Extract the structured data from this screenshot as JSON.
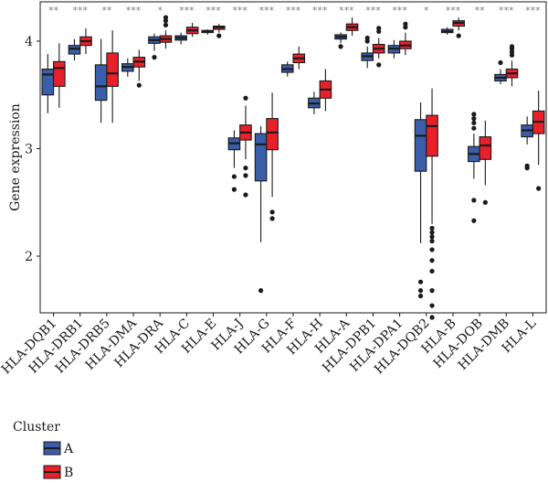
{
  "chart_data": {
    "type": "box",
    "ylabel": "Gene expression",
    "ylim": [
      1.35,
      4.35
    ],
    "yticks": [
      2,
      3,
      4
    ],
    "categories": [
      "HLA-DQB1",
      "HLA-DRB1",
      "HLA-DRB5",
      "HLA-DMA",
      "HLA-DRA",
      "HLA-C",
      "HLA-E",
      "HLA-J",
      "HLA-G",
      "HLA-F",
      "HLA-H",
      "HLA-A",
      "HLA-DPB1",
      "HLA-DPA1",
      "HLA-DQB2",
      "HLA-B",
      "HLA-DOB",
      "HLA-DMB",
      "HLA-L"
    ],
    "significance": [
      "**",
      "***",
      "**",
      "***",
      "*",
      "***",
      "***",
      "***",
      "***",
      "***",
      "***",
      "***",
      "***",
      "***",
      "*",
      "***",
      "**",
      "***",
      "***"
    ],
    "legend": {
      "title": "Cluster",
      "position": "bottom-left"
    },
    "series": [
      {
        "name": "A",
        "color": "#3a5ea8",
        "boxes": [
          {
            "min": 3.33,
            "q1": 3.5,
            "median": 3.69,
            "q3": 3.74,
            "max": 3.88,
            "outliers": []
          },
          {
            "min": 3.82,
            "q1": 3.88,
            "median": 3.93,
            "q3": 3.96,
            "max": 4.02,
            "outliers": []
          },
          {
            "min": 3.24,
            "q1": 3.45,
            "median": 3.58,
            "q3": 3.78,
            "max": 4.02,
            "outliers": []
          },
          {
            "min": 3.67,
            "q1": 3.72,
            "median": 3.76,
            "q3": 3.79,
            "max": 3.84,
            "outliers": []
          },
          {
            "min": 3.91,
            "q1": 3.98,
            "median": 4.01,
            "q3": 4.04,
            "max": 4.07,
            "outliers": [
              3.85
            ]
          },
          {
            "min": 3.97,
            "q1": 4.01,
            "median": 4.03,
            "q3": 4.05,
            "max": 4.08,
            "outliers": []
          },
          {
            "min": 4.06,
            "q1": 4.08,
            "median": 4.09,
            "q3": 4.1,
            "max": 4.11,
            "outliers": []
          },
          {
            "min": 2.82,
            "q1": 2.99,
            "median": 3.05,
            "q3": 3.1,
            "max": 3.17,
            "outliers": [
              2.74,
              2.62
            ]
          },
          {
            "min": 2.13,
            "q1": 2.7,
            "median": 3.04,
            "q3": 3.14,
            "max": 3.21,
            "outliers": [
              1.68
            ]
          },
          {
            "min": 3.67,
            "q1": 3.71,
            "median": 3.74,
            "q3": 3.78,
            "max": 3.81,
            "outliers": []
          },
          {
            "min": 3.32,
            "q1": 3.38,
            "median": 3.42,
            "q3": 3.47,
            "max": 3.53,
            "outliers": []
          },
          {
            "min": 3.98,
            "q1": 4.02,
            "median": 4.04,
            "q3": 4.06,
            "max": 4.08,
            "outliers": [
              3.95
            ]
          },
          {
            "min": 3.75,
            "q1": 3.82,
            "median": 3.86,
            "q3": 3.89,
            "max": 3.95,
            "outliers": [
              4.0,
              4.03
            ]
          },
          {
            "min": 3.84,
            "q1": 3.89,
            "median": 3.93,
            "q3": 3.96,
            "max": 4.01,
            "outliers": []
          },
          {
            "min": 2.12,
            "q1": 2.79,
            "median": 3.12,
            "q3": 3.27,
            "max": 3.43,
            "outliers": [
              1.76,
              1.68,
              1.63
            ]
          },
          {
            "min": 4.06,
            "q1": 4.08,
            "median": 4.09,
            "q3": 4.11,
            "max": 4.13,
            "outliers": []
          },
          {
            "min": 2.72,
            "q1": 2.88,
            "median": 2.95,
            "q3": 3.02,
            "max": 3.14,
            "outliers": [
              3.19,
              3.24,
              3.28,
              3.32,
              2.52,
              2.33
            ]
          },
          {
            "min": 3.6,
            "q1": 3.63,
            "median": 3.66,
            "q3": 3.69,
            "max": 3.74,
            "outliers": [
              3.8
            ]
          },
          {
            "min": 3.04,
            "q1": 3.11,
            "median": 3.17,
            "q3": 3.22,
            "max": 3.3,
            "outliers": [
              2.84,
              2.82
            ]
          }
        ]
      },
      {
        "name": "B",
        "color": "#e8202a",
        "boxes": [
          {
            "min": 3.38,
            "q1": 3.58,
            "median": 3.75,
            "q3": 3.81,
            "max": 3.98,
            "outliers": []
          },
          {
            "min": 3.88,
            "q1": 3.96,
            "median": 4.0,
            "q3": 4.04,
            "max": 4.12,
            "outliers": []
          },
          {
            "min": 3.24,
            "q1": 3.58,
            "median": 3.7,
            "q3": 3.89,
            "max": 4.1,
            "outliers": []
          },
          {
            "min": 3.63,
            "q1": 3.76,
            "median": 3.81,
            "q3": 3.85,
            "max": 3.92,
            "outliers": [
              3.59
            ]
          },
          {
            "min": 3.93,
            "q1": 3.99,
            "median": 4.02,
            "q3": 4.05,
            "max": 4.1,
            "outliers": [
              4.15,
              4.19,
              4.22
            ]
          },
          {
            "min": 4.04,
            "q1": 4.07,
            "median": 4.1,
            "q3": 4.13,
            "max": 4.17,
            "outliers": []
          },
          {
            "min": 4.08,
            "q1": 4.11,
            "median": 4.13,
            "q3": 4.14,
            "max": 4.16,
            "outliers": [
              4.05
            ]
          },
          {
            "min": 2.9,
            "q1": 3.08,
            "median": 3.15,
            "q3": 3.22,
            "max": 3.4,
            "outliers": [
              3.47,
              2.82,
              2.75,
              2.57
            ]
          },
          {
            "min": 2.55,
            "q1": 2.99,
            "median": 3.15,
            "q3": 3.28,
            "max": 3.52,
            "outliers": [
              2.41,
              2.35
            ]
          },
          {
            "min": 3.74,
            "q1": 3.8,
            "median": 3.84,
            "q3": 3.88,
            "max": 3.95,
            "outliers": []
          },
          {
            "min": 3.35,
            "q1": 3.47,
            "median": 3.55,
            "q3": 3.63,
            "max": 3.74,
            "outliers": []
          },
          {
            "min": 4.05,
            "q1": 4.1,
            "median": 4.13,
            "q3": 4.16,
            "max": 4.22,
            "outliers": []
          },
          {
            "min": 3.84,
            "q1": 3.89,
            "median": 3.93,
            "q3": 3.97,
            "max": 4.03,
            "outliers": [
              3.78,
              4.09,
              4.12
            ]
          },
          {
            "min": 3.87,
            "q1": 3.93,
            "median": 3.96,
            "q3": 4.0,
            "max": 4.08,
            "outliers": [
              4.13,
              4.16
            ]
          },
          {
            "min": 2.3,
            "q1": 2.93,
            "median": 3.21,
            "q3": 3.31,
            "max": 3.56,
            "outliers": [
              2.26,
              2.22,
              2.18,
              2.14,
              2.06,
              1.96,
              1.86,
              1.68,
              1.54,
              1.43
            ]
          },
          {
            "min": 4.1,
            "q1": 4.14,
            "median": 4.17,
            "q3": 4.19,
            "max": 4.22,
            "outliers": [
              4.05
            ]
          },
          {
            "min": 2.66,
            "q1": 2.9,
            "median": 3.03,
            "q3": 3.11,
            "max": 3.26,
            "outliers": [
              2.5
            ]
          },
          {
            "min": 3.58,
            "q1": 3.66,
            "median": 3.7,
            "q3": 3.74,
            "max": 3.82,
            "outliers": [
              3.87,
              3.9,
              3.93,
              3.95
            ]
          },
          {
            "min": 2.85,
            "q1": 3.14,
            "median": 3.25,
            "q3": 3.35,
            "max": 3.54,
            "outliers": [
              2.63
            ]
          }
        ]
      }
    ]
  }
}
